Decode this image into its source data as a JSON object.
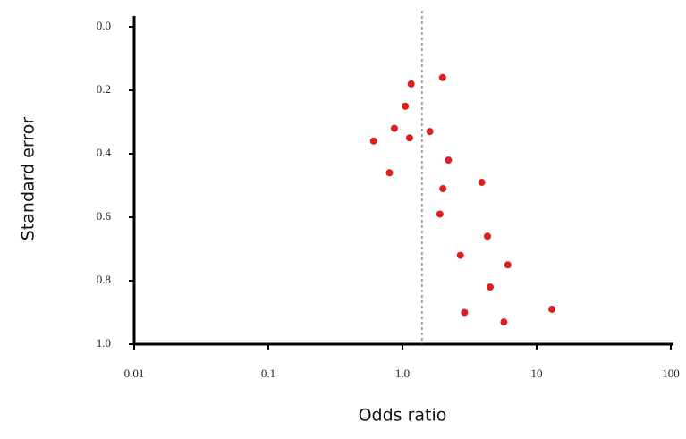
{
  "chart_data": {
    "type": "scatter",
    "x_label": "Odds ratio",
    "y_label": "Standard error",
    "xlog": true,
    "yreversed": true,
    "xlim": [
      0.01,
      100
    ],
    "ylim": [
      0,
      1
    ],
    "xticks": [
      0.01,
      0.1,
      {
        "value": 1,
        "label": "1.0"
      },
      10,
      100
    ],
    "yticks": [
      {
        "value": 0,
        "label": "0.0"
      },
      0.2,
      0.4,
      0.6,
      0.8,
      {
        "value": 1,
        "label": "1.0"
      }
    ],
    "reference_x": 1.4,
    "color": "#dd1f1f",
    "x": [
      1.16,
      1.99,
      1.05,
      0.61,
      0.87,
      1.13,
      1.6,
      2.2,
      0.8,
      3.9,
      2.0,
      1.9,
      4.3,
      2.7,
      6.1,
      4.5,
      13,
      2.9,
      5.7
    ],
    "values": [
      0.18,
      0.16,
      0.25,
      0.36,
      0.32,
      0.35,
      0.33,
      0.42,
      0.46,
      0.49,
      0.51,
      0.59,
      0.66,
      0.72,
      0.75,
      0.82,
      0.89,
      0.9,
      0.93
    ]
  }
}
